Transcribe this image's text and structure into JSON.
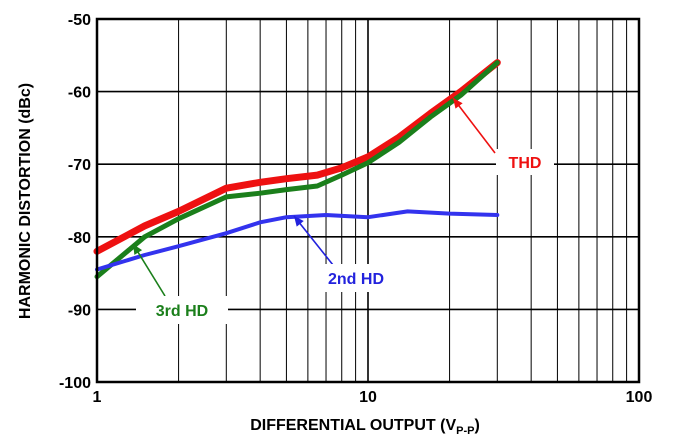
{
  "chart_data": {
    "type": "line",
    "x_scale": "log",
    "xlim": [
      1,
      100
    ],
    "ylim": [
      -100,
      -50
    ],
    "grid": true,
    "xlabel_main": "DIFFERENTIAL OUTPUT (V",
    "xlabel_sub": "P-P",
    "xlabel_close": ")",
    "ylabel": "HARMONIC DISTORTION (dBc)",
    "x_ticks": [
      "1",
      "10",
      "100"
    ],
    "y_ticks": [
      "-50",
      "-60",
      "-70",
      "-80",
      "-90",
      "-100"
    ],
    "series": [
      {
        "name": "THD",
        "color": "#ee1111",
        "x": [
          1,
          1.5,
          2,
          3,
          4,
          5,
          6.5,
          8,
          10,
          13,
          17,
          22,
          30
        ],
        "y": [
          -82,
          -78.5,
          -76.5,
          -73.3,
          -72.5,
          -72,
          -71.5,
          -70.5,
          -69,
          -66.3,
          -63,
          -60,
          -56
        ]
      },
      {
        "name": "3rd HD",
        "color": "#1b7f1b",
        "x": [
          1,
          1.5,
          2,
          3,
          4,
          5,
          6.5,
          8,
          10,
          13,
          17,
          22,
          30
        ],
        "y": [
          -85.5,
          -80,
          -77.5,
          -74.5,
          -74,
          -73.5,
          -73,
          -71.5,
          -69.8,
          -67,
          -63.5,
          -60.5,
          -56
        ]
      },
      {
        "name": "2nd HD",
        "color": "#3333ee",
        "x": [
          1,
          1.5,
          2,
          3,
          4,
          5,
          7,
          10,
          14,
          20,
          30
        ],
        "y": [
          -84.5,
          -82.5,
          -81.3,
          -79.5,
          -78,
          -77.3,
          -77,
          -77.3,
          -76.5,
          -76.8,
          -77
        ]
      }
    ],
    "annotations": [
      {
        "text": "THD",
        "color": "#ee1111"
      },
      {
        "text": "2nd HD",
        "color": "#2222dd"
      },
      {
        "text": "3rd HD",
        "color": "#1b7f1b"
      }
    ]
  }
}
